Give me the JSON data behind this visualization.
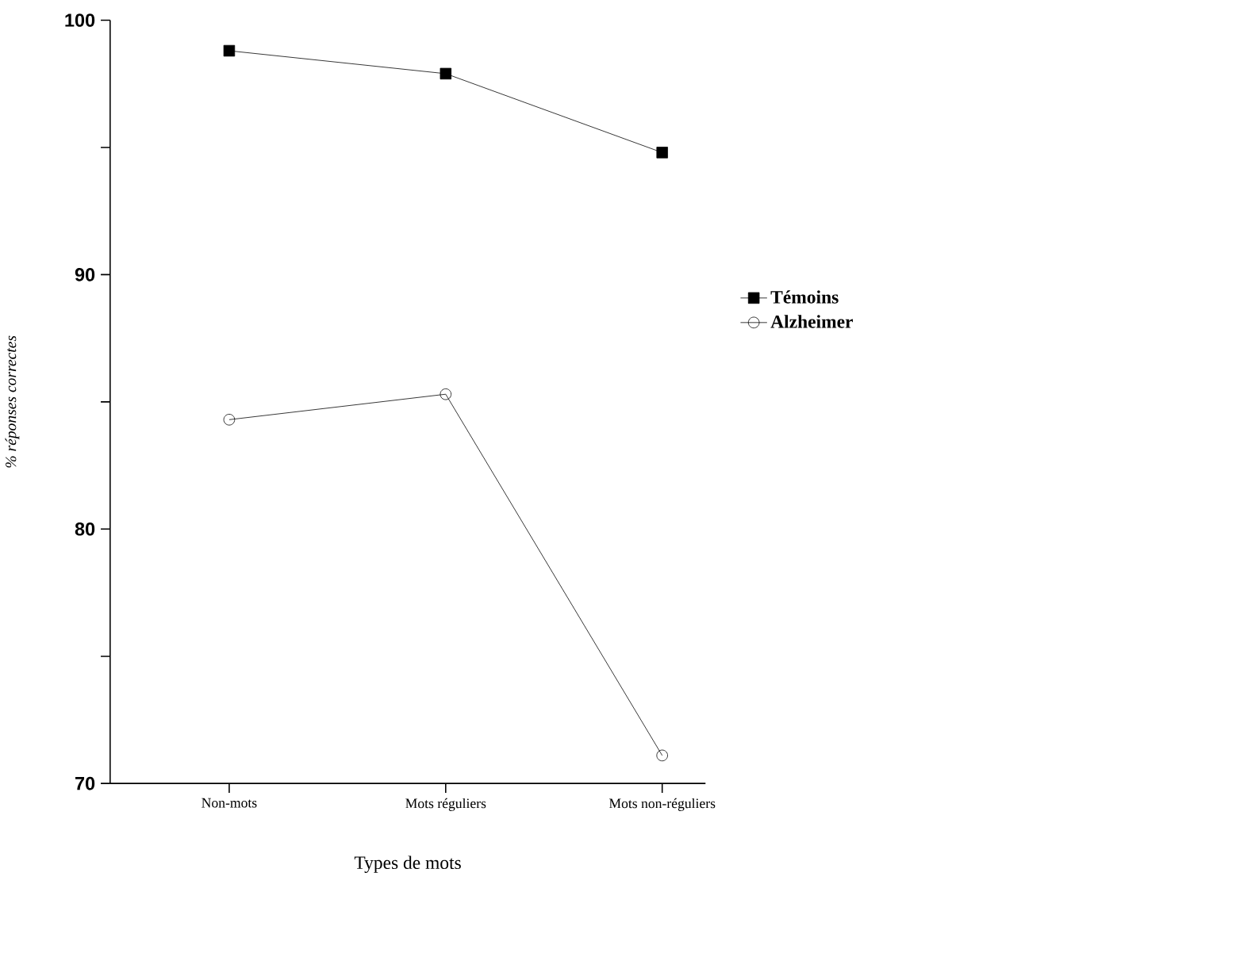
{
  "chart_data": {
    "type": "line",
    "xlabel": "Types de mots",
    "ylabel": "% réponses correctes",
    "categories": [
      "Non-mots",
      "Mots réguliers",
      "Mots non-réguliers"
    ],
    "series": [
      {
        "name": "Témoins",
        "color": "#000000",
        "marker": "square",
        "values": [
          98.8,
          97.9,
          94.8
        ]
      },
      {
        "name": "Alzheimer",
        "color": "#000000",
        "marker": "circle",
        "values": [
          84.3,
          85.3,
          71.1
        ]
      }
    ],
    "ylim": [
      70,
      100
    ],
    "yticks": [
      70,
      {
        "value": 75,
        "label": null
      },
      80,
      {
        "value": 85,
        "label": null
      },
      90,
      {
        "value": 95,
        "label": null
      },
      100
    ],
    "grid": false,
    "legend": "right",
    "line_style": "solid"
  }
}
